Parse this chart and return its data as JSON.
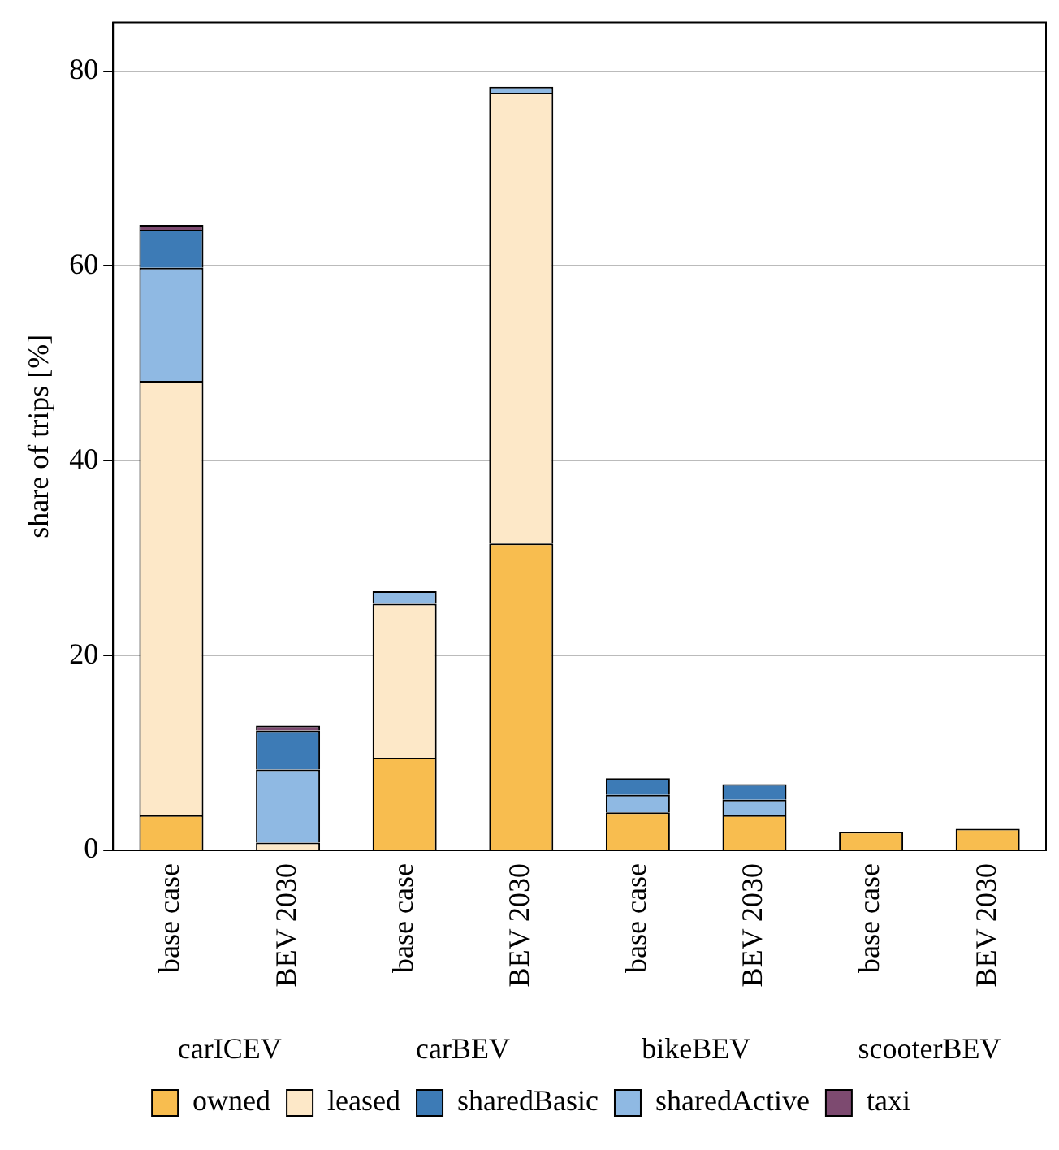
{
  "chart_data": {
    "type": "bar",
    "stacked": true,
    "ylabel": "share of trips [%]",
    "categories": [
      "base case",
      "BEV 2030",
      "base case",
      "BEV 2030",
      "base case",
      "BEV 2030",
      "base case",
      "BEV 2030"
    ],
    "annotations": [
      "carICEV",
      "carBEV",
      "bikeBEV",
      "scooterBEV"
    ],
    "series": [
      {
        "name": "owned",
        "color": "#f8bd4f",
        "values": [
          3.6,
          0,
          9.5,
          31.5,
          3.9,
          3.6,
          1.9,
          2.2
        ]
      },
      {
        "name": "leased",
        "color": "#fde8c8",
        "values": [
          44.6,
          0.8,
          15.8,
          46.3,
          0,
          0,
          0,
          0
        ]
      },
      {
        "name": "sharedActive",
        "color": "#8fb9e3",
        "values": [
          11.6,
          7.5,
          1.3,
          0.6,
          1.8,
          1.6,
          0,
          0
        ]
      },
      {
        "name": "sharedBasic",
        "color": "#3d7bb6",
        "values": [
          3.9,
          4.0,
          0,
          0,
          1.7,
          1.6,
          0,
          0
        ]
      },
      {
        "name": "taxi",
        "color": "#7d4a70",
        "values": [
          0.5,
          0.5,
          0,
          0,
          0,
          0,
          0,
          0
        ]
      }
    ],
    "ylim": [
      0,
      85
    ],
    "yticks": [
      0,
      20,
      40,
      60,
      80
    ],
    "grid": "y",
    "legend": "bottom"
  }
}
